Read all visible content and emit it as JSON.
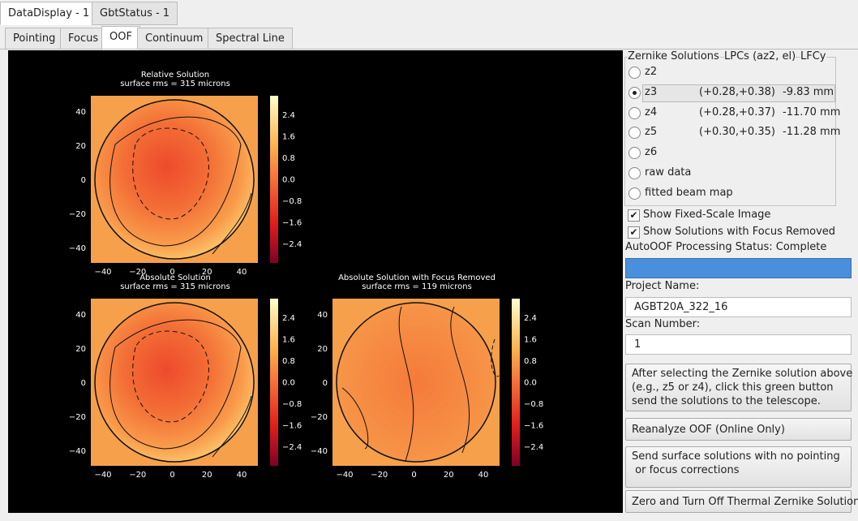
{
  "window_tabs": [
    "DataDisplay - 1",
    "GbtStatus - 1"
  ],
  "view_tabs": [
    "Pointing",
    "Focus",
    "OOF",
    "Continuum",
    "Spectral Line"
  ],
  "plots": [
    {
      "title": "Relative Solution",
      "subtitle": "surface rms = 315 microns"
    },
    {
      "title": "Absolute Solution",
      "subtitle": "surface rms = 315 microns"
    },
    {
      "title": "Absolute Solution with Focus Removed",
      "subtitle": "surface rms = 119 microns"
    }
  ],
  "axis_ticks": {
    "x": [
      "−40",
      "−20",
      "0",
      "20",
      "40"
    ],
    "y": [
      "40",
      "20",
      "0",
      "−20",
      "−40"
    ],
    "colorbar": [
      "2.4",
      "1.6",
      "0.8",
      "0.0",
      "−0.8",
      "−1.6",
      "−2.4"
    ]
  },
  "zernike": {
    "header": [
      "Zernike Solutions",
      "LPCs (az2, el)",
      "LFCy"
    ],
    "rows": [
      {
        "label": "z2"
      },
      {
        "label": "z3",
        "lpcs": "(+0.28,+0.38)",
        "lfcy": "-9.83 mm",
        "selected": true
      },
      {
        "label": "z4",
        "lpcs": "(+0.28,+0.37)",
        "lfcy": "-11.70 mm"
      },
      {
        "label": "z5",
        "lpcs": "(+0.30,+0.35)",
        "lfcy": "-11.28 mm"
      },
      {
        "label": "z6"
      },
      {
        "label": "raw data"
      },
      {
        "label": "fitted beam map"
      }
    ]
  },
  "checkboxes": [
    {
      "label": "Show Fixed-Scale Image",
      "checked": true
    },
    {
      "label": "Show Solutions with Focus Removed",
      "checked": true
    }
  ],
  "status": "AutoOOF Processing Status: Complete",
  "project_label": "Project Name:",
  "project_value": "AGBT20A_322_16",
  "scan_label": "Scan Number:",
  "scan_value": "1",
  "buttons": [
    [
      "After selecting the Zernike solution above",
      "(e.g., z5 or z4), click this green button",
      "send the solutions to the telescope."
    ],
    [
      "Reanalyze OOF (Online Only)"
    ],
    [
      "Send surface solutions with no pointing",
      " or focus corrections"
    ],
    [
      "Zero and Turn Off Thermal Zernike Solution"
    ]
  ]
}
